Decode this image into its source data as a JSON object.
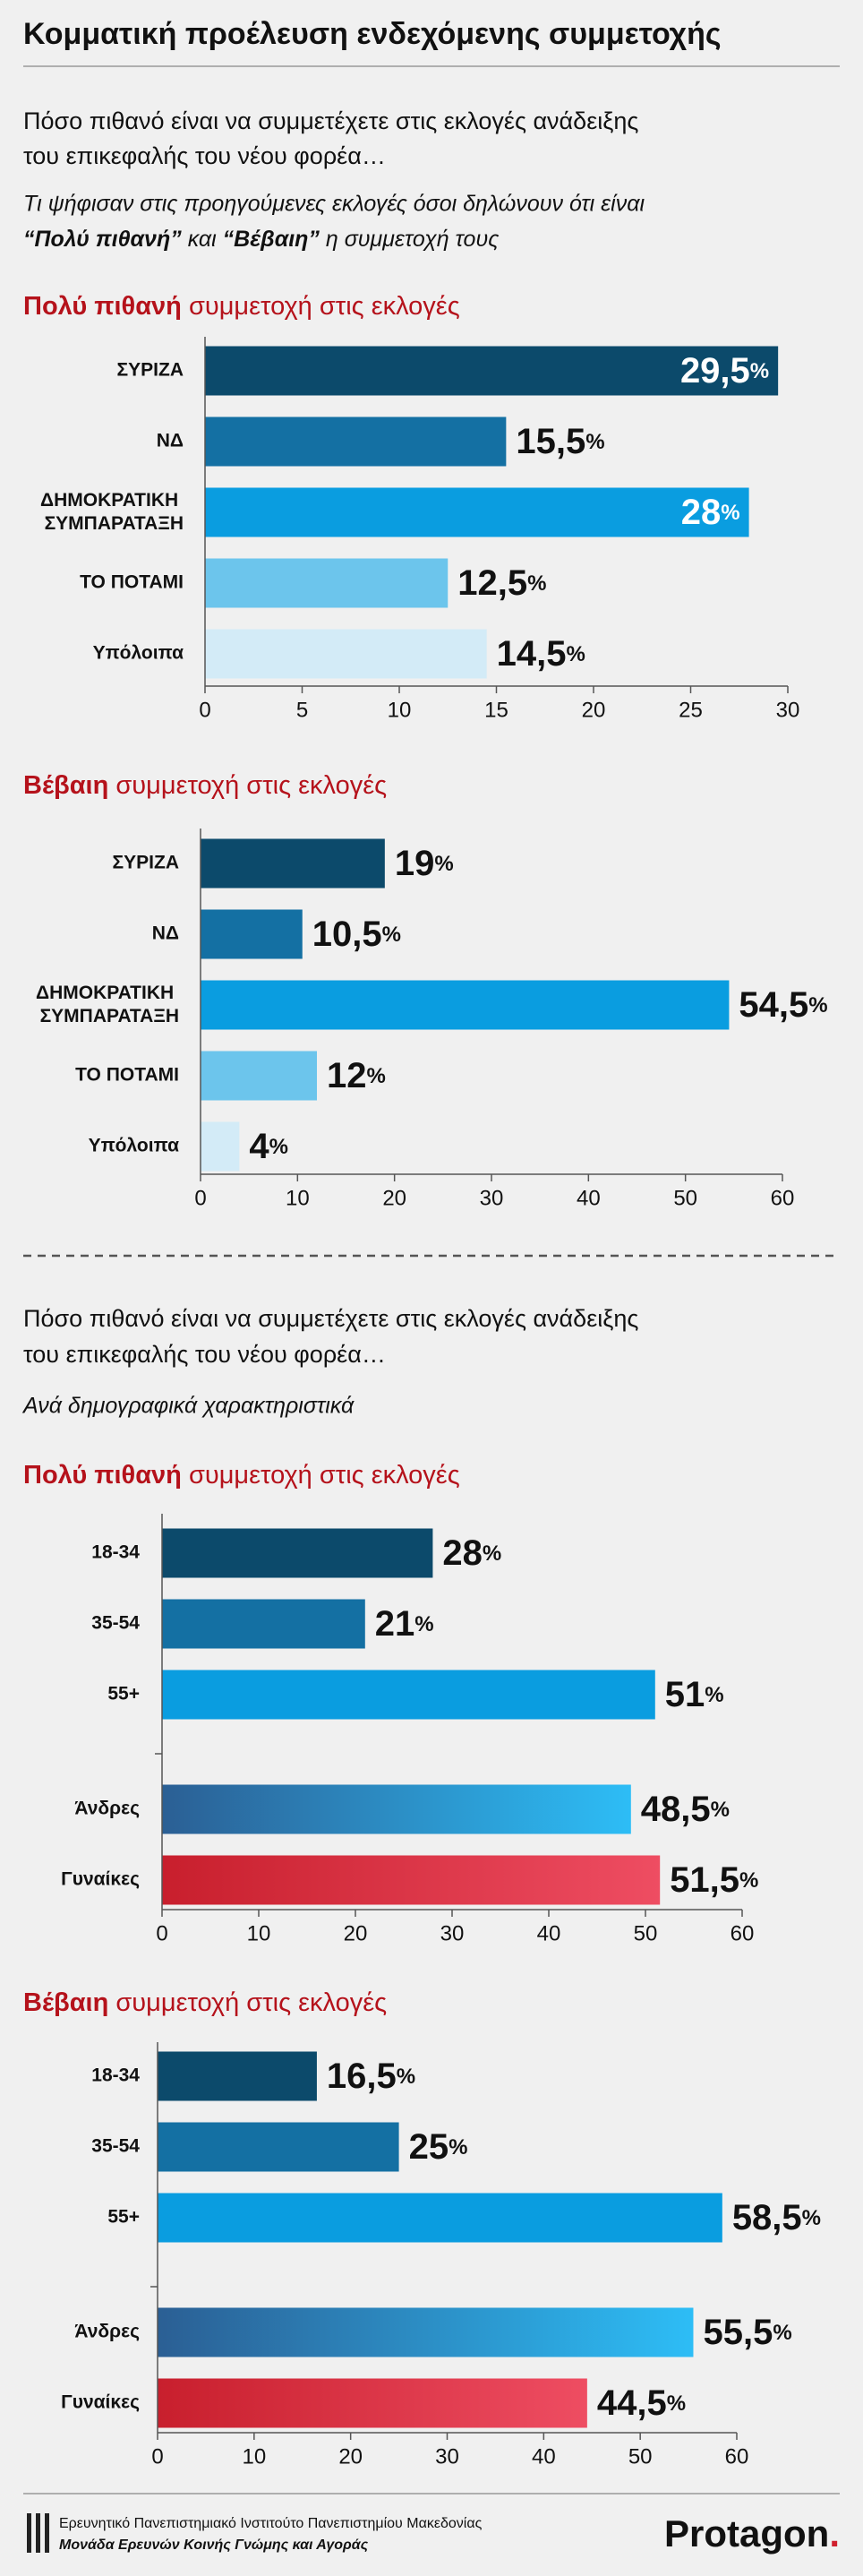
{
  "title": "Κομματική προέλευση ενδεχόμενης συμμετοχής",
  "section1": {
    "question": [
      "Πόσο πιθανό είναι να συμμετέχετε στις εκλογές ανάδειξης",
      "του επικεφαλής του νέου φορέα…"
    ],
    "note": [
      "Τι ψήφισαν στις προηγούμενες εκλογές όσοι δηλώνουν ότι είναι",
      "“Πολύ πιθανή”",
      "και",
      "“Βέβαιη”",
      "η συμμετοχή τους"
    ]
  },
  "section2": {
    "question": [
      "Πόσο πιθανό είναι να συμμετέχετε στις εκλογές ανάδειξης",
      "του επικεφαλής του νέου φορέα…"
    ],
    "note": "Ανά δημογραφικά χαρακτηριστικά"
  },
  "footer": {
    "lines": [
      "Ερευνητικό Πανεπιστημιακό Ινστιτούτο Πανεπιστημίου Μακεδονίας",
      "Μονάδα Ερευνών Κοινής Γνώμης και Αγοράς"
    ],
    "brand": "Protagon."
  },
  "chart_data": [
    {
      "type": "bar",
      "title": [
        "Πολύ πιθανή",
        "συμμετοχή στις εκλογές"
      ],
      "categories": [
        "ΣΥΡΙΖΑ",
        "ΝΔ",
        "ΔΗΜΟΚΡΑΤΙΚΗ ΣΥΜΠΑΡΑΤΑΞΗ",
        "ΤΟ ΠΟΤΑΜΙ",
        "Υπόλοιπα"
      ],
      "values": [
        29.5,
        15.5,
        28,
        12.5,
        14.5
      ],
      "value_labels": [
        "29,5%",
        "15,5%",
        "28%",
        "12,5%",
        "14,5%"
      ],
      "value_label_position": [
        "inside",
        "outside",
        "inside",
        "outside",
        "outside"
      ],
      "colors": [
        "#0c4a6b",
        "#1470a3",
        "#0a9de0",
        "#6cc5ec",
        "#d3ebf7"
      ],
      "xlim": [
        0,
        30
      ],
      "xticks": [
        0,
        5,
        10,
        15,
        20,
        25,
        30
      ]
    },
    {
      "type": "bar",
      "title": [
        "Βέβαιη",
        "συμμετοχή στις εκλογές"
      ],
      "categories": [
        "ΣΥΡΙΖΑ",
        "ΝΔ",
        "ΔΗΜΟΚΡΑΤΙΚΗ ΣΥΜΠΑΡΑΤΑΞΗ",
        "ΤΟ ΠΟΤΑΜΙ",
        "Υπόλοιπα"
      ],
      "values": [
        19,
        10.5,
        54.5,
        12,
        4
      ],
      "value_labels": [
        "19%",
        "10,5%",
        "54,5%",
        "12%",
        "4%"
      ],
      "colors": [
        "#0c4a6b",
        "#1470a3",
        "#0a9de0",
        "#6cc5ec",
        "#d3ebf7"
      ],
      "xlim": [
        0,
        60
      ],
      "xticks": [
        0,
        10,
        20,
        30,
        40,
        50,
        60
      ]
    },
    {
      "type": "bar",
      "title": [
        "Πολύ πιθανή",
        "συμμετοχή στις εκλογές"
      ],
      "categories": [
        "18-34",
        "35-54",
        "55+",
        "Άνδρες",
        "Γυναίκες"
      ],
      "values": [
        28,
        21,
        51,
        48.5,
        51.5
      ],
      "value_labels": [
        "28%",
        "21%",
        "51%",
        "48,5%",
        "51,5%"
      ],
      "colors": [
        "#0c4a6b",
        "#1470a3",
        "#0a9de0",
        [
          "#2b5f94",
          "#2dbdf6"
        ],
        [
          "#c81f2d",
          "#ee4d62"
        ]
      ],
      "xlim": [
        0,
        60
      ],
      "xticks": [
        0,
        10,
        20,
        30,
        40,
        50,
        60
      ]
    },
    {
      "type": "bar",
      "title": [
        "Βέβαιη",
        "συμμετοχή στις εκλογές"
      ],
      "categories": [
        "18-34",
        "35-54",
        "55+",
        "Άνδρες",
        "Γυναίκες"
      ],
      "values": [
        16.5,
        25,
        58.5,
        55.5,
        44.5
      ],
      "value_labels": [
        "16,5%",
        "25%",
        "58,5%",
        "55,5%",
        "44,5%"
      ],
      "colors": [
        "#0c4a6b",
        "#1470a3",
        "#0a9de0",
        [
          "#2b5f94",
          "#2dbdf6"
        ],
        [
          "#c81f2d",
          "#ee4d62"
        ]
      ],
      "xlim": [
        0,
        60
      ],
      "xticks": [
        0,
        10,
        20,
        30,
        40,
        50,
        60
      ]
    }
  ]
}
